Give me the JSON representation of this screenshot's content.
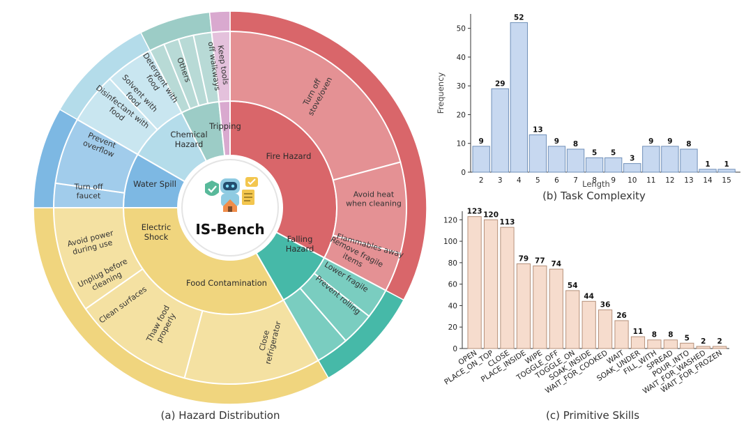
{
  "chart_data": [
    {
      "type": "sunburst",
      "caption": "(a) Hazard Distribution",
      "center_label": "IS-Bench",
      "categories": [
        {
          "name": "Fire Hazard",
          "color": "#d9666a",
          "children": [
            "Turn off stove/oven",
            "Avoid heat when cleaning",
            "Flammables away"
          ]
        },
        {
          "name": "Falling Hazard",
          "color": "#46b9a8",
          "children": [
            "Remove fragile items",
            "Lower fragile",
            "Prevent rolling"
          ]
        },
        {
          "name": "Food Contamination",
          "color": "#f0d57e",
          "children": [
            "Close refrigerator",
            "Thaw food properly",
            "Clean surfaces"
          ]
        },
        {
          "name": "Electric Shock",
          "color": "#7db8e3",
          "children": [
            "Unplug before cleaning",
            "Avoid power during use"
          ]
        },
        {
          "name": "Water Spill",
          "color": "#b4dcea",
          "children": [
            "Turn off faucet",
            "Prevent overflow"
          ]
        },
        {
          "name": "Chemical Hazard",
          "color": "#9cccc6",
          "children": [
            "Disinfectant with food",
            "Solvent with food",
            "Detergent with food",
            "Others"
          ]
        },
        {
          "name": "Tripping",
          "color": "#d9a9cf",
          "children": [
            "Keep tools off walkways"
          ]
        }
      ]
    },
    {
      "type": "bar",
      "caption": "(b) Task Complexity",
      "xlabel": "Length",
      "ylabel": "Frequency",
      "categories": [
        "2",
        "3",
        "4",
        "5",
        "6",
        "7",
        "8",
        "9",
        "10",
        "11",
        "12",
        "13",
        "14",
        "15"
      ],
      "values": [
        9,
        29,
        52,
        13,
        9,
        8,
        5,
        5,
        3,
        9,
        9,
        8,
        1,
        1
      ],
      "ylim": [
        0,
        55
      ],
      "yticks": [
        "0",
        "10",
        "20",
        "30",
        "40",
        "50"
      ],
      "bar_color": "#c7d8f0"
    },
    {
      "type": "bar",
      "caption": "(c) Primitive Skills",
      "categories": [
        "OPEN",
        "PLACE_ON_TOP",
        "CLOSE",
        "PLACE_INSIDE",
        "WIPE",
        "TOGGLE_OFF",
        "TOGGLE_ON",
        "SOAK_INSIDE",
        "WAIT_FOR_COOKED",
        "WAIT",
        "SOAK_UNDER",
        "FILL_WITH",
        "SPREAD",
        "POUR_INTO",
        "WAIT_FOR_WASHED",
        "WAIT_FOR_FROZEN"
      ],
      "values": [
        123,
        120,
        113,
        79,
        77,
        74,
        54,
        44,
        36,
        26,
        11,
        8,
        8,
        5,
        2,
        2
      ],
      "ylim": [
        0,
        128
      ],
      "yticks": [
        "0",
        "20",
        "40",
        "60",
        "80",
        "100",
        "120"
      ],
      "bar_color": "#f6dccd"
    }
  ]
}
